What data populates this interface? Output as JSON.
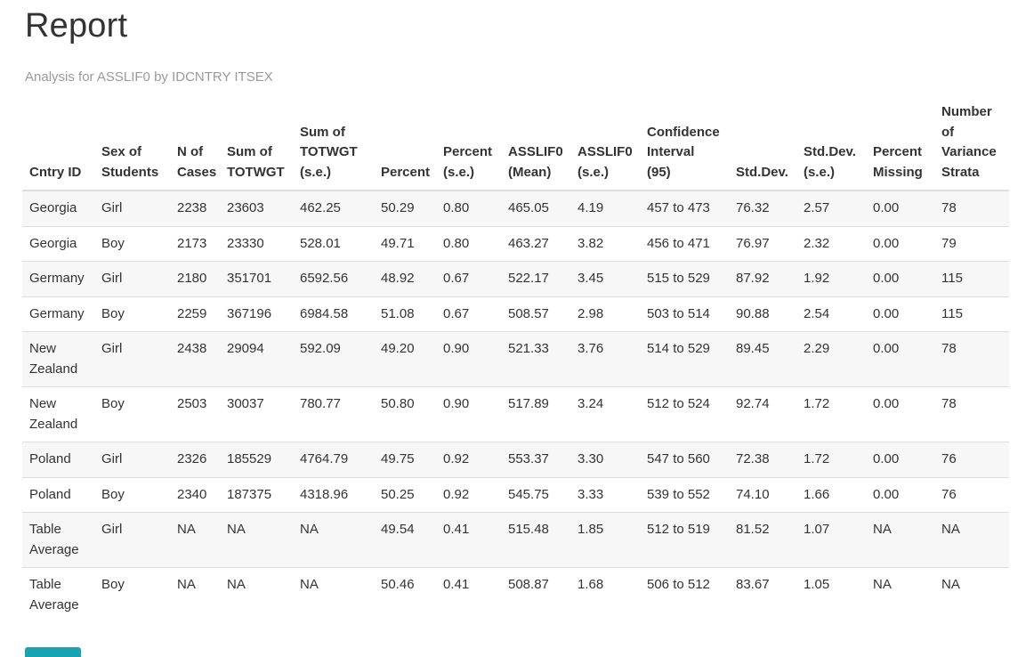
{
  "page": {
    "title": "Report",
    "subtitle": "Analysis for ASSLIF0 by IDCNTRY ITSEX"
  },
  "colors": {
    "accent": "#18a3b2",
    "text": "#333333",
    "muted_text": "#9a9a9a",
    "stripe": "#f7f7f7",
    "border": "#dddddd"
  },
  "table": {
    "columns": [
      {
        "id": "cntry-id",
        "lines": [
          "Cntry ID"
        ]
      },
      {
        "id": "sex-of-students",
        "lines": [
          "Sex of",
          "Students"
        ]
      },
      {
        "id": "n-of-cases",
        "lines": [
          "N of",
          "Cases"
        ]
      },
      {
        "id": "sum-of-totwgt",
        "lines": [
          "Sum of",
          "TOTWGT"
        ]
      },
      {
        "id": "sum-of-totwgt-se",
        "lines": [
          "Sum of",
          "TOTWGT",
          "(s.e.)"
        ]
      },
      {
        "id": "percent",
        "lines": [
          "Percent"
        ]
      },
      {
        "id": "percent-se",
        "lines": [
          "Percent",
          "(s.e.)"
        ]
      },
      {
        "id": "asslif0-mean",
        "lines": [
          "ASSLIF0",
          "(Mean)"
        ]
      },
      {
        "id": "asslif0-se",
        "lines": [
          "ASSLIF0",
          "(s.e.)"
        ]
      },
      {
        "id": "confidence-interval-95",
        "lines": [
          "Confidence",
          "Interval",
          "(95)"
        ]
      },
      {
        "id": "std-dev",
        "lines": [
          "Std.Dev."
        ]
      },
      {
        "id": "std-dev-se",
        "lines": [
          "Std.Dev.",
          "(s.e.)"
        ]
      },
      {
        "id": "percent-missing",
        "lines": [
          "Percent",
          "Missing"
        ]
      },
      {
        "id": "number-of-variance-strata",
        "lines": [
          "Number",
          "of",
          "Variance",
          "Strata"
        ]
      }
    ],
    "rows": [
      {
        "cells": [
          "Georgia",
          "Girl",
          "2238",
          "23603",
          "462.25",
          "50.29",
          "0.80",
          "465.05",
          "4.19",
          "457 to 473",
          "76.32",
          "2.57",
          "0.00",
          "78"
        ]
      },
      {
        "cells": [
          "Georgia",
          "Boy",
          "2173",
          "23330",
          "528.01",
          "49.71",
          "0.80",
          "463.27",
          "3.82",
          "456 to 471",
          "76.97",
          "2.32",
          "0.00",
          "79"
        ]
      },
      {
        "cells": [
          "Germany",
          "Girl",
          "2180",
          "351701",
          "6592.56",
          "48.92",
          "0.67",
          "522.17",
          "3.45",
          "515 to 529",
          "87.92",
          "1.92",
          "0.00",
          "115"
        ]
      },
      {
        "cells": [
          "Germany",
          "Boy",
          "2259",
          "367196",
          "6984.58",
          "51.08",
          "0.67",
          "508.57",
          "2.98",
          "503 to 514",
          "90.88",
          "2.54",
          "0.00",
          "115"
        ]
      },
      {
        "cells": [
          "New Zealand",
          "Girl",
          "2438",
          "29094",
          "592.09",
          "49.20",
          "0.90",
          "521.33",
          "3.76",
          "514 to 529",
          "89.45",
          "2.29",
          "0.00",
          "78"
        ]
      },
      {
        "cells": [
          "New Zealand",
          "Boy",
          "2503",
          "30037",
          "780.77",
          "50.80",
          "0.90",
          "517.89",
          "3.24",
          "512 to 524",
          "92.74",
          "1.72",
          "0.00",
          "78"
        ]
      },
      {
        "cells": [
          "Poland",
          "Girl",
          "2326",
          "185529",
          "4764.79",
          "49.75",
          "0.92",
          "553.37",
          "3.30",
          "547 to 560",
          "72.38",
          "1.72",
          "0.00",
          "76"
        ]
      },
      {
        "cells": [
          "Poland",
          "Boy",
          "2340",
          "187375",
          "4318.96",
          "50.25",
          "0.92",
          "545.75",
          "3.33",
          "539 to 552",
          "74.10",
          "1.66",
          "0.00",
          "76"
        ]
      },
      {
        "cells": [
          "Table Average",
          "Girl",
          "NA",
          "NA",
          "NA",
          "49.54",
          "0.41",
          "515.48",
          "1.85",
          "512 to 519",
          "81.52",
          "1.07",
          "NA",
          "NA"
        ]
      },
      {
        "cells": [
          "Table Average",
          "Boy",
          "NA",
          "NA",
          "NA",
          "50.46",
          "0.41",
          "508.87",
          "1.68",
          "506 to 512",
          "83.67",
          "1.05",
          "NA",
          "NA"
        ]
      }
    ]
  },
  "partial_button": {
    "label": ""
  }
}
